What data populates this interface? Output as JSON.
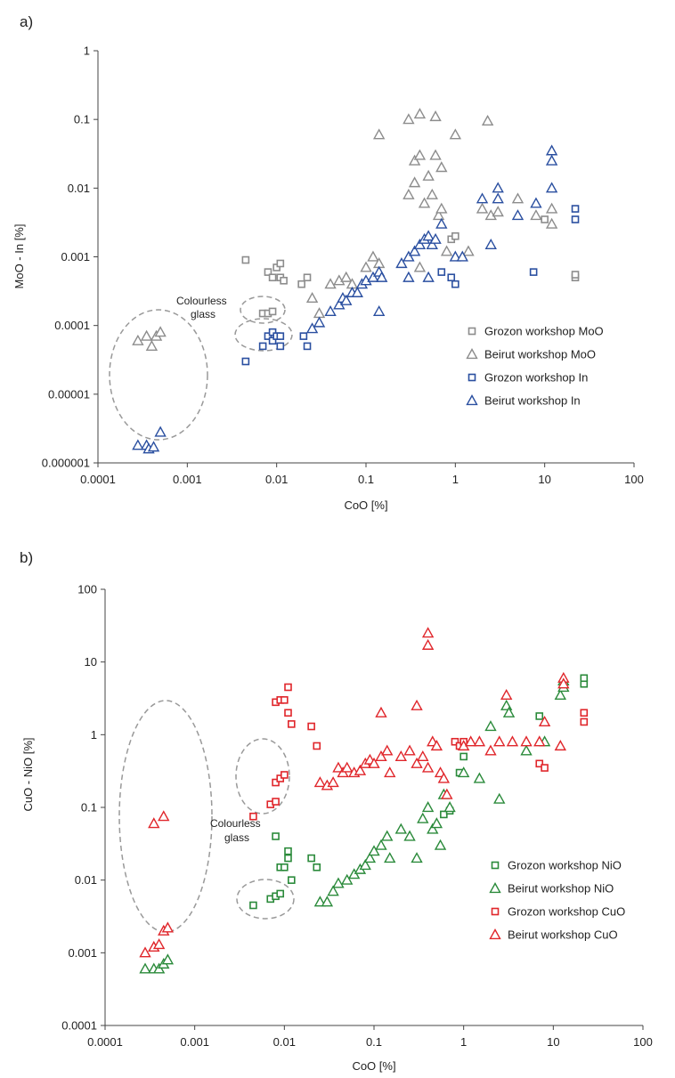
{
  "colors": {
    "grey": "#8c8c8c",
    "blue": "#2a4fa0",
    "green": "#2a8a3a",
    "red": "#e0262b",
    "axis": "#444444",
    "dashed": "#999999"
  },
  "chart_data": [
    {
      "type": "scatter",
      "panel": "a)",
      "xlabel": "CoO [%]",
      "ylabel": "MoO - In [%]",
      "xscale": "log",
      "yscale": "log",
      "xlim": [
        0.0001,
        100
      ],
      "ylim": [
        1e-06,
        1
      ],
      "x_ticks": [
        "0.0001",
        "0.001",
        "0.01",
        "0.1",
        "1",
        "10",
        "100"
      ],
      "y_ticks": [
        "0.000001",
        "0.00001",
        "0.0001",
        "0.001",
        "0.01",
        "0.1",
        "1"
      ],
      "grid": false,
      "legend_position": "right",
      "annotation": "Colourless glass",
      "series": [
        {
          "name": "Grozon workshop MoO",
          "marker": "square",
          "color": "grey",
          "points": [
            [
              0.0045,
              0.0009
            ],
            [
              0.007,
              0.00015
            ],
            [
              0.008,
              0.00015
            ],
            [
              0.009,
              0.00016
            ],
            [
              0.008,
              0.0006
            ],
            [
              0.009,
              0.0005
            ],
            [
              0.01,
              0.0007
            ],
            [
              0.011,
              0.0008
            ],
            [
              0.011,
              0.0005
            ],
            [
              0.012,
              0.00045
            ],
            [
              0.019,
              0.0004
            ],
            [
              0.022,
              0.0005
            ],
            [
              0.9,
              0.0018
            ],
            [
              1.0,
              0.002
            ],
            [
              10,
              0.0035
            ],
            [
              22,
              0.0005
            ],
            [
              22,
              0.00055
            ]
          ]
        },
        {
          "name": "Beirut workshop MoO",
          "marker": "triangle",
          "color": "grey",
          "points": [
            [
              0.00028,
              6e-05
            ],
            [
              0.00035,
              7e-05
            ],
            [
              0.0004,
              5e-05
            ],
            [
              0.00045,
              7e-05
            ],
            [
              0.0005,
              8e-05
            ],
            [
              0.025,
              0.00025
            ],
            [
              0.03,
              0.00015
            ],
            [
              0.04,
              0.0004
            ],
            [
              0.05,
              0.00045
            ],
            [
              0.06,
              0.0005
            ],
            [
              0.07,
              0.0004
            ],
            [
              0.1,
              0.0007
            ],
            [
              0.12,
              0.001
            ],
            [
              0.14,
              0.0008
            ],
            [
              0.14,
              0.06
            ],
            [
              0.3,
              0.1
            ],
            [
              0.4,
              0.12
            ],
            [
              0.6,
              0.11
            ],
            [
              1.0,
              0.06
            ],
            [
              2.3,
              0.095
            ],
            [
              0.3,
              0.008
            ],
            [
              0.35,
              0.025
            ],
            [
              0.4,
              0.03
            ],
            [
              0.45,
              0.006
            ],
            [
              0.55,
              0.008
            ],
            [
              0.6,
              0.03
            ],
            [
              0.7,
              0.02
            ],
            [
              0.35,
              0.012
            ],
            [
              0.5,
              0.015
            ],
            [
              0.4,
              0.0007
            ],
            [
              0.65,
              0.004
            ],
            [
              0.7,
              0.005
            ],
            [
              0.8,
              0.0012
            ],
            [
              1.4,
              0.0012
            ],
            [
              2.0,
              0.005
            ],
            [
              2.5,
              0.004
            ],
            [
              3.0,
              0.0045
            ],
            [
              5,
              0.007
            ],
            [
              8,
              0.004
            ],
            [
              12,
              0.003
            ],
            [
              12,
              0.005
            ]
          ]
        },
        {
          "name": "Grozon workshop In",
          "marker": "square",
          "color": "blue",
          "points": [
            [
              0.0045,
              3e-05
            ],
            [
              0.007,
              5e-05
            ],
            [
              0.008,
              7e-05
            ],
            [
              0.009,
              6e-05
            ],
            [
              0.009,
              8e-05
            ],
            [
              0.01,
              7e-05
            ],
            [
              0.011,
              5e-05
            ],
            [
              0.011,
              7e-05
            ],
            [
              0.02,
              7e-05
            ],
            [
              0.022,
              5e-05
            ],
            [
              0.7,
              0.0006
            ],
            [
              0.9,
              0.0005
            ],
            [
              1.0,
              0.0004
            ],
            [
              7.5,
              0.0006
            ],
            [
              22,
              0.005
            ],
            [
              22,
              0.0035
            ]
          ]
        },
        {
          "name": "Beirut workshop In",
          "marker": "triangle",
          "color": "blue",
          "points": [
            [
              0.00028,
              1.8e-06
            ],
            [
              0.00035,
              1.8e-06
            ],
            [
              0.00037,
              1.6e-06
            ],
            [
              0.00042,
              1.7e-06
            ],
            [
              0.0005,
              2.8e-06
            ],
            [
              0.025,
              9e-05
            ],
            [
              0.03,
              0.00011
            ],
            [
              0.04,
              0.00016
            ],
            [
              0.05,
              0.0002
            ],
            [
              0.055,
              0.00025
            ],
            [
              0.06,
              0.00023
            ],
            [
              0.07,
              0.0003
            ],
            [
              0.08,
              0.0003
            ],
            [
              0.09,
              0.0004
            ],
            [
              0.1,
              0.00045
            ],
            [
              0.12,
              0.0005
            ],
            [
              0.14,
              0.0006
            ],
            [
              0.15,
              0.0005
            ],
            [
              0.14,
              0.00016
            ],
            [
              0.25,
              0.0008
            ],
            [
              0.3,
              0.001
            ],
            [
              0.35,
              0.0012
            ],
            [
              0.4,
              0.0015
            ],
            [
              0.45,
              0.0018
            ],
            [
              0.5,
              0.002
            ],
            [
              0.55,
              0.0015
            ],
            [
              0.6,
              0.0018
            ],
            [
              0.7,
              0.003
            ],
            [
              0.3,
              0.0005
            ],
            [
              0.5,
              0.0005
            ],
            [
              1.0,
              0.001
            ],
            [
              1.2,
              0.001
            ],
            [
              2.0,
              0.007
            ],
            [
              2.5,
              0.0015
            ],
            [
              3.0,
              0.01
            ],
            [
              3.0,
              0.007
            ],
            [
              5,
              0.004
            ],
            [
              8,
              0.006
            ],
            [
              12,
              0.01
            ],
            [
              12,
              0.025
            ],
            [
              12,
              0.035
            ]
          ]
        }
      ]
    },
    {
      "type": "scatter",
      "panel": "b)",
      "xlabel": "CoO [%]",
      "ylabel": "CuO - NiO [%]",
      "xscale": "log",
      "yscale": "log",
      "xlim": [
        0.0001,
        100
      ],
      "ylim": [
        0.0001,
        100
      ],
      "x_ticks": [
        "0.0001",
        "0.001",
        "0.01",
        "0.1",
        "1",
        "10",
        "100"
      ],
      "y_ticks": [
        "0.0001",
        "0.001",
        "0.01",
        "0.1",
        "1",
        "10",
        "100"
      ],
      "grid": false,
      "legend_position": "right",
      "annotation": "Colourless glass",
      "series": [
        {
          "name": "Grozon workshop NiO",
          "marker": "square",
          "color": "green",
          "points": [
            [
              0.0045,
              0.0045
            ],
            [
              0.007,
              0.0055
            ],
            [
              0.008,
              0.006
            ],
            [
              0.009,
              0.0065
            ],
            [
              0.008,
              0.04
            ],
            [
              0.009,
              0.015
            ],
            [
              0.01,
              0.015
            ],
            [
              0.011,
              0.025
            ],
            [
              0.011,
              0.02
            ],
            [
              0.012,
              0.01
            ],
            [
              0.02,
              0.02
            ],
            [
              0.023,
              0.015
            ],
            [
              0.6,
              0.08
            ],
            [
              0.7,
              0.09
            ],
            [
              0.9,
              0.3
            ],
            [
              1.0,
              0.5
            ],
            [
              7,
              1.8
            ],
            [
              22,
              5
            ],
            [
              22,
              6
            ]
          ]
        },
        {
          "name": "Beirut workshop NiO",
          "marker": "triangle",
          "color": "green",
          "points": [
            [
              0.00028,
              0.0006
            ],
            [
              0.00035,
              0.0006
            ],
            [
              0.0004,
              0.0006
            ],
            [
              0.00045,
              0.0007
            ],
            [
              0.0005,
              0.0008
            ],
            [
              0.025,
              0.005
            ],
            [
              0.03,
              0.005
            ],
            [
              0.035,
              0.007
            ],
            [
              0.04,
              0.009
            ],
            [
              0.05,
              0.01
            ],
            [
              0.06,
              0.012
            ],
            [
              0.07,
              0.014
            ],
            [
              0.08,
              0.016
            ],
            [
              0.09,
              0.02
            ],
            [
              0.1,
              0.025
            ],
            [
              0.12,
              0.03
            ],
            [
              0.14,
              0.04
            ],
            [
              0.15,
              0.02
            ],
            [
              0.2,
              0.05
            ],
            [
              0.25,
              0.04
            ],
            [
              0.3,
              0.02
            ],
            [
              0.35,
              0.07
            ],
            [
              0.4,
              0.1
            ],
            [
              0.45,
              0.05
            ],
            [
              0.5,
              0.06
            ],
            [
              0.55,
              0.03
            ],
            [
              0.6,
              0.15
            ],
            [
              0.7,
              0.1
            ],
            [
              1.0,
              0.3
            ],
            [
              1.5,
              0.25
            ],
            [
              2.0,
              1.3
            ],
            [
              2.5,
              0.13
            ],
            [
              3.0,
              2.5
            ],
            [
              3.2,
              2.0
            ],
            [
              5,
              0.6
            ],
            [
              8,
              0.8
            ],
            [
              12,
              3.5
            ],
            [
              13,
              4.5
            ],
            [
              13,
              5.5
            ]
          ]
        },
        {
          "name": "Grozon workshop CuO",
          "marker": "square",
          "color": "red",
          "points": [
            [
              0.0045,
              0.075
            ],
            [
              0.007,
              0.11
            ],
            [
              0.008,
              0.12
            ],
            [
              0.008,
              0.22
            ],
            [
              0.009,
              0.25
            ],
            [
              0.01,
              0.28
            ],
            [
              0.008,
              2.8
            ],
            [
              0.009,
              3
            ],
            [
              0.01,
              3
            ],
            [
              0.011,
              2
            ],
            [
              0.011,
              4.5
            ],
            [
              0.012,
              1.4
            ],
            [
              0.02,
              1.3
            ],
            [
              0.023,
              0.7
            ],
            [
              0.8,
              0.8
            ],
            [
              0.9,
              0.7
            ],
            [
              1.0,
              0.8
            ],
            [
              7,
              0.4
            ],
            [
              8,
              0.35
            ],
            [
              22,
              1.5
            ],
            [
              22,
              2
            ]
          ]
        },
        {
          "name": "Beirut workshop CuO",
          "marker": "triangle",
          "color": "red",
          "points": [
            [
              0.00028,
              0.001
            ],
            [
              0.00035,
              0.0012
            ],
            [
              0.0004,
              0.0013
            ],
            [
              0.00045,
              0.002
            ],
            [
              0.0005,
              0.0022
            ],
            [
              0.00035,
              0.06
            ],
            [
              0.00045,
              0.075
            ],
            [
              0.025,
              0.22
            ],
            [
              0.03,
              0.2
            ],
            [
              0.035,
              0.22
            ],
            [
              0.04,
              0.35
            ],
            [
              0.045,
              0.3
            ],
            [
              0.05,
              0.35
            ],
            [
              0.06,
              0.3
            ],
            [
              0.07,
              0.32
            ],
            [
              0.08,
              0.4
            ],
            [
              0.09,
              0.45
            ],
            [
              0.1,
              0.4
            ],
            [
              0.12,
              0.5
            ],
            [
              0.14,
              0.6
            ],
            [
              0.15,
              0.3
            ],
            [
              0.12,
              2.0
            ],
            [
              0.2,
              0.5
            ],
            [
              0.25,
              0.6
            ],
            [
              0.3,
              0.4
            ],
            [
              0.35,
              0.5
            ],
            [
              0.4,
              0.35
            ],
            [
              0.45,
              0.8
            ],
            [
              0.5,
              0.7
            ],
            [
              0.55,
              0.3
            ],
            [
              0.6,
              0.25
            ],
            [
              0.65,
              0.15
            ],
            [
              0.3,
              2.5
            ],
            [
              0.4,
              25
            ],
            [
              0.4,
              17
            ],
            [
              1.0,
              0.7
            ],
            [
              1.2,
              0.8
            ],
            [
              1.5,
              0.8
            ],
            [
              2.0,
              0.6
            ],
            [
              2.5,
              0.8
            ],
            [
              3.0,
              3.5
            ],
            [
              3.5,
              0.8
            ],
            [
              5,
              0.8
            ],
            [
              7,
              0.8
            ],
            [
              8,
              1.5
            ],
            [
              12,
              0.7
            ],
            [
              13,
              6
            ],
            [
              13,
              5
            ]
          ]
        }
      ]
    }
  ]
}
